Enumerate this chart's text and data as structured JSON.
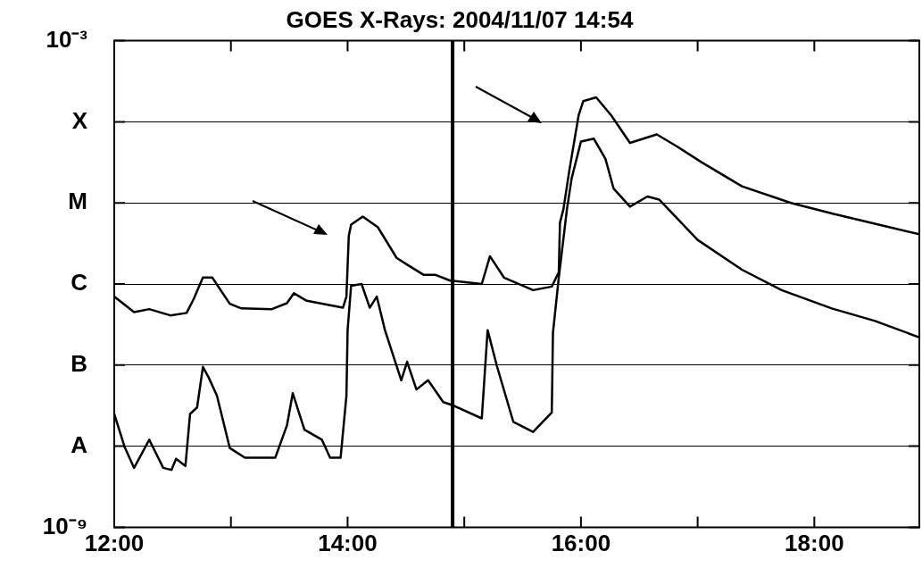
{
  "chart_data": {
    "type": "line",
    "title": "GOES X-Rays: 2004/11/07 14:54",
    "xlim": [
      12,
      18.9
    ],
    "xticks": [
      {
        "value": 12,
        "label": "12:00"
      },
      {
        "value": 13,
        "label": null
      },
      {
        "value": 14,
        "label": "14:00"
      },
      {
        "value": 15,
        "label": null
      },
      {
        "value": 16,
        "label": "16:00"
      },
      {
        "value": 17,
        "label": null
      },
      {
        "value": 18,
        "label": "18:00"
      }
    ],
    "ylim": [
      1e-09,
      0.001
    ],
    "yticks": [
      {
        "value": 1e-09,
        "label": "10⁻⁹"
      },
      {
        "value": 1e-08,
        "label": "A"
      },
      {
        "value": 1e-07,
        "label": "B"
      },
      {
        "value": 1e-06,
        "label": "C"
      },
      {
        "value": 1e-05,
        "label": "M"
      },
      {
        "value": 0.0001,
        "label": "X"
      },
      {
        "value": 0.001,
        "label": "10⁻³"
      }
    ],
    "log": "y",
    "grid": "y",
    "legend": false,
    "marker": "none",
    "line_style": "solid",
    "ref_lines": [
      {
        "axis": "x",
        "value": 14.9,
        "color": "#000000"
      }
    ],
    "series": [
      {
        "color": "#000000",
        "x": [
          12.0,
          12.17,
          12.3,
          12.48,
          12.62,
          12.68,
          12.76,
          12.84,
          12.99,
          13.09,
          13.35,
          13.48,
          13.54,
          13.65,
          13.84,
          13.96,
          13.99,
          14.01,
          14.03,
          14.13,
          14.26,
          14.42,
          14.52,
          14.65,
          14.75,
          14.88,
          15.15,
          15.22,
          15.34,
          15.59,
          15.75,
          15.81,
          15.82,
          15.85,
          15.9,
          15.98,
          16.02,
          16.13,
          16.26,
          16.42,
          16.65,
          16.82,
          17.03,
          17.38,
          17.8,
          18.15,
          18.9
        ],
        "values": [
          7e-07,
          4.5e-07,
          4.9e-07,
          4.1e-07,
          4.4e-07,
          6.5e-07,
          1.2e-06,
          1.2e-06,
          5.7e-07,
          5e-07,
          4.9e-07,
          5.8e-07,
          7.7e-07,
          6.2e-07,
          5.5e-07,
          5.1e-07,
          7e-07,
          3.9e-06,
          5.4e-06,
          6.8e-06,
          5e-06,
          2.1e-06,
          1.7e-06,
          1.3e-06,
          1.3e-06,
          1.1e-06,
          1e-06,
          2.2e-06,
          1.2e-06,
          8.4e-07,
          9.3e-07,
          1.4e-06,
          5.7e-06,
          8.4e-06,
          2.5e-05,
          0.00012,
          0.00018,
          0.0002,
          0.00012,
          5.5e-05,
          7e-05,
          5e-05,
          3.2e-05,
          1.6e-05,
          1e-05,
          7.4e-06,
          4.1e-06
        ]
      },
      {
        "color": "#000000",
        "x": [
          12.0,
          12.09,
          12.17,
          12.3,
          12.42,
          12.49,
          12.53,
          12.61,
          12.65,
          12.71,
          12.76,
          12.81,
          12.88,
          12.99,
          13.12,
          13.38,
          13.48,
          13.53,
          13.63,
          13.78,
          13.85,
          13.94,
          13.99,
          14.0,
          14.03,
          14.12,
          14.19,
          14.25,
          14.32,
          14.46,
          14.51,
          14.59,
          14.69,
          14.82,
          14.9,
          15.15,
          15.2,
          15.28,
          15.42,
          15.59,
          15.75,
          15.76,
          15.81,
          15.88,
          15.92,
          16.0,
          16.11,
          16.21,
          16.28,
          16.42,
          16.57,
          16.67,
          17.0,
          17.38,
          17.72,
          18.15,
          18.52,
          18.9
        ],
        "values": [
          2.5e-08,
          9.7e-09,
          5.4e-09,
          1.2e-08,
          5.4e-09,
          5.1e-09,
          7e-09,
          5.7e-09,
          2.5e-08,
          3e-08,
          9.5e-08,
          7e-08,
          4.2e-08,
          9.5e-09,
          7.2e-09,
          7.2e-09,
          1.8e-08,
          4.5e-08,
          1.6e-08,
          1.2e-08,
          7.2e-09,
          7.2e-09,
          4.2e-08,
          2.7e-07,
          9.5e-07,
          1e-06,
          5.1e-07,
          7e-07,
          2.7e-07,
          6.5e-08,
          1.1e-07,
          5e-08,
          6.5e-08,
          3.5e-08,
          3.2e-08,
          2.2e-08,
          2.7e-07,
          9.7e-08,
          2e-08,
          1.5e-08,
          2.6e-08,
          2.5e-07,
          1.2e-06,
          8.4e-06,
          2e-05,
          5.7e-05,
          6.2e-05,
          3.5e-05,
          1.5e-05,
          9e-06,
          1.2e-05,
          1.1e-05,
          3.5e-06,
          1.5e-06,
          8.4e-07,
          5e-07,
          3.5e-07,
          2.2e-07
        ]
      }
    ]
  }
}
